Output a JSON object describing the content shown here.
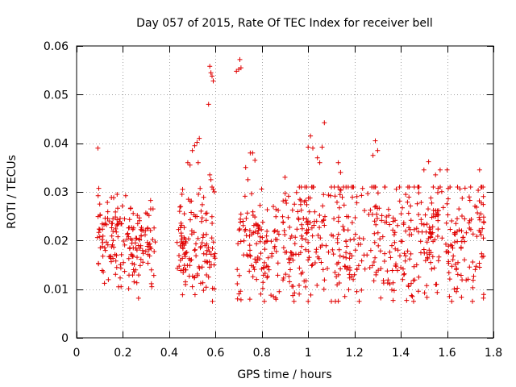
{
  "chart_data": {
    "type": "scatter",
    "title": "Day 057 of 2015, Rate Of TEC Index for receiver bell",
    "xlabel": "GPS time / hours",
    "ylabel": "ROTI / TECUs",
    "xlim": [
      0,
      1.8
    ],
    "ylim": [
      0,
      0.06
    ],
    "xticks": [
      0,
      0.2,
      0.4,
      0.6,
      0.8,
      1.0,
      1.2,
      1.4,
      1.6,
      1.8
    ],
    "xtick_labels": [
      "0",
      "0.2",
      "0.4",
      "0.6",
      "0.8",
      "1",
      "1.2",
      "1.4",
      "1.6",
      "1.8"
    ],
    "yticks": [
      0,
      0.01,
      0.02,
      0.03,
      0.04,
      0.05,
      0.06
    ],
    "ytick_labels": [
      "0",
      "0.01",
      "0.02",
      "0.03",
      "0.04",
      "0.05",
      "0.06"
    ],
    "grid": true,
    "marker": "+",
    "color": "#e00000",
    "seed": 57,
    "clusters": [
      {
        "x": [
          0.09,
          0.34
        ],
        "y_center": 0.02,
        "y_spread": 0.0045,
        "n": 170
      },
      {
        "x": [
          0.43,
          0.6
        ],
        "y_center": 0.019,
        "y_spread": 0.0055,
        "n": 120
      },
      {
        "x": [
          0.69,
          0.93
        ],
        "y_center": 0.018,
        "y_spread": 0.006,
        "n": 140
      },
      {
        "x": [
          0.93,
          1.3
        ],
        "y_center": 0.021,
        "y_spread": 0.007,
        "n": 220
      },
      {
        "x": [
          1.3,
          1.76
        ],
        "y_center": 0.02,
        "y_spread": 0.007,
        "n": 280
      }
    ],
    "points": [
      [
        0.092,
        0.039
      ],
      [
        0.093,
        0.0292
      ],
      [
        0.094,
        0.0153
      ],
      [
        0.1,
        0.0275
      ],
      [
        0.175,
        0.0295
      ],
      [
        0.16,
        0.0288
      ],
      [
        0.225,
        0.0101
      ],
      [
        0.26,
        0.0113
      ],
      [
        0.32,
        0.0265
      ],
      [
        0.33,
        0.0265
      ],
      [
        0.325,
        0.0105
      ],
      [
        0.445,
        0.026
      ],
      [
        0.455,
        0.0295
      ],
      [
        0.465,
        0.0255
      ],
      [
        0.48,
        0.036
      ],
      [
        0.49,
        0.0355
      ],
      [
        0.5,
        0.0385
      ],
      [
        0.51,
        0.0395
      ],
      [
        0.52,
        0.0402
      ],
      [
        0.53,
        0.041
      ],
      [
        0.525,
        0.036
      ],
      [
        0.5,
        0.0105
      ],
      [
        0.47,
        0.0115
      ],
      [
        0.57,
        0.048
      ],
      [
        0.575,
        0.0558
      ],
      [
        0.58,
        0.0545
      ],
      [
        0.585,
        0.0538
      ],
      [
        0.59,
        0.0528
      ],
      [
        0.575,
        0.0335
      ],
      [
        0.58,
        0.0325
      ],
      [
        0.585,
        0.031
      ],
      [
        0.59,
        0.0305
      ],
      [
        0.595,
        0.03
      ],
      [
        0.57,
        0.0125
      ],
      [
        0.69,
        0.0548
      ],
      [
        0.7,
        0.0552
      ],
      [
        0.705,
        0.0572
      ],
      [
        0.71,
        0.0555
      ],
      [
        0.695,
        0.008
      ],
      [
        0.71,
        0.0078
      ],
      [
        0.73,
        0.035
      ],
      [
        0.74,
        0.0325
      ],
      [
        0.75,
        0.038
      ],
      [
        0.76,
        0.038
      ],
      [
        0.77,
        0.0365
      ],
      [
        0.85,
        0.0085
      ],
      [
        0.86,
        0.0082
      ],
      [
        0.875,
        0.0095
      ],
      [
        0.9,
        0.033
      ],
      [
        1.0,
        0.0392
      ],
      [
        1.01,
        0.0415
      ],
      [
        1.02,
        0.039
      ],
      [
        1.04,
        0.037
      ],
      [
        1.05,
        0.036
      ],
      [
        1.06,
        0.0392
      ],
      [
        1.07,
        0.0442
      ],
      [
        1.13,
        0.036
      ],
      [
        1.14,
        0.034
      ],
      [
        1.21,
        0.0095
      ],
      [
        1.23,
        0.0098
      ],
      [
        1.28,
        0.0375
      ],
      [
        1.29,
        0.0405
      ],
      [
        1.3,
        0.0385
      ],
      [
        1.45,
        0.0085
      ],
      [
        1.5,
        0.0345
      ],
      [
        1.52,
        0.0362
      ],
      [
        1.55,
        0.0335
      ],
      [
        1.57,
        0.0345
      ],
      [
        1.6,
        0.0345
      ],
      [
        1.62,
        0.0075
      ],
      [
        1.61,
        0.0085
      ],
      [
        1.64,
        0.0095
      ],
      [
        1.74,
        0.0345
      ],
      [
        1.75,
        0.031
      ],
      [
        1.74,
        0.0145
      ]
    ]
  }
}
